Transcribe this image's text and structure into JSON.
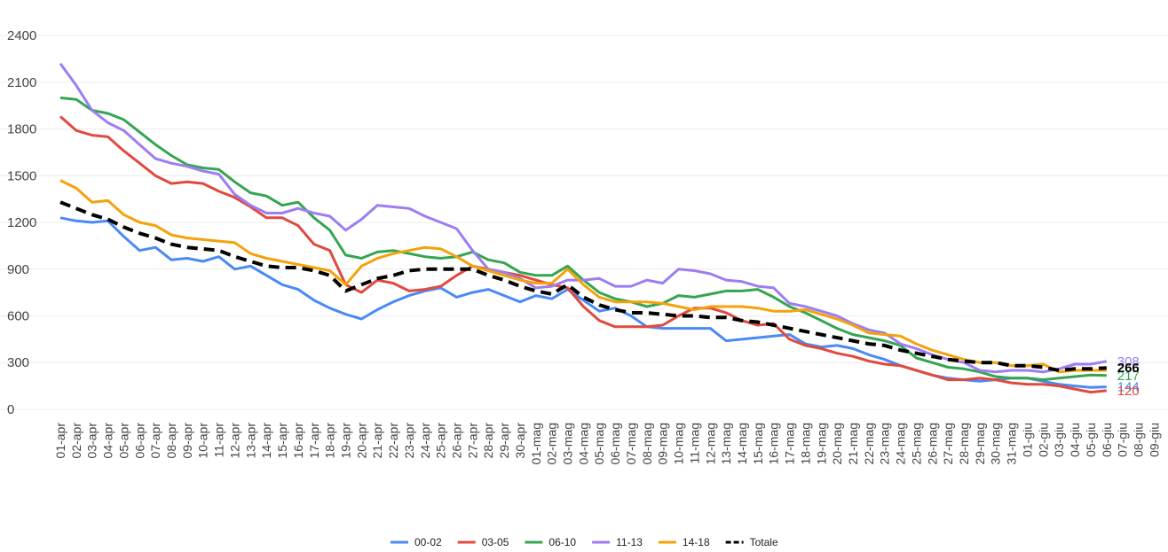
{
  "chart_data": {
    "type": "line",
    "categories": [
      "01-apr",
      "02-apr",
      "03-apr",
      "04-apr",
      "05-apr",
      "06-apr",
      "07-apr",
      "08-apr",
      "09-apr",
      "10-apr",
      "11-apr",
      "12-apr",
      "13-apr",
      "14-apr",
      "15-apr",
      "16-apr",
      "17-apr",
      "18-apr",
      "19-apr",
      "20-apr",
      "21-apr",
      "22-apr",
      "23-apr",
      "24-apr",
      "25-apr",
      "26-apr",
      "27-apr",
      "28-apr",
      "29-apr",
      "30-apr",
      "01-mag",
      "02-mag",
      "03-mag",
      "04-mag",
      "05-mag",
      "06-mag",
      "07-mag",
      "08-mag",
      "09-mag",
      "10-mag",
      "11-mag",
      "12-mag",
      "13-mag",
      "14-mag",
      "15-mag",
      "16-mag",
      "17-mag",
      "18-mag",
      "19-mag",
      "20-mag",
      "21-mag",
      "22-mag",
      "23-mag",
      "24-mag",
      "25-mag",
      "26-mag",
      "27-mag",
      "28-mag",
      "29-mag",
      "30-mag",
      "31-mag",
      "01-giu",
      "02-giu",
      "03-giu",
      "04-giu",
      "05-giu",
      "06-giu",
      "07-giu",
      "08-giu",
      "09-giu"
    ],
    "series": [
      {
        "name": "00-02",
        "color": "#4a8af4",
        "label_last": true,
        "values": [
          1230,
          1210,
          1200,
          1210,
          1110,
          1020,
          1040,
          960,
          970,
          950,
          980,
          900,
          920,
          860,
          800,
          770,
          700,
          650,
          610,
          580,
          640,
          690,
          730,
          760,
          780,
          720,
          750,
          770,
          730,
          690,
          730,
          710,
          770,
          700,
          630,
          650,
          600,
          530,
          520,
          520,
          520,
          520,
          440,
          450,
          460,
          470,
          480,
          420,
          400,
          410,
          390,
          350,
          320,
          280,
          250,
          220,
          200,
          190,
          180,
          190,
          200,
          200,
          180,
          160,
          150,
          140,
          144,
          null,
          null,
          null
        ]
      },
      {
        "name": "03-05",
        "color": "#e04a3f",
        "label_last": true,
        "values": [
          1880,
          1790,
          1760,
          1750,
          1660,
          1580,
          1500,
          1450,
          1460,
          1450,
          1400,
          1360,
          1300,
          1230,
          1230,
          1180,
          1060,
          1020,
          800,
          750,
          830,
          810,
          760,
          770,
          790,
          860,
          920,
          900,
          880,
          860,
          830,
          800,
          780,
          660,
          570,
          530,
          530,
          530,
          540,
          600,
          650,
          650,
          620,
          570,
          540,
          550,
          450,
          410,
          390,
          360,
          340,
          310,
          290,
          280,
          250,
          220,
          190,
          190,
          200,
          190,
          170,
          160,
          160,
          150,
          130,
          110,
          120,
          null,
          null,
          null
        ]
      },
      {
        "name": "06-10",
        "color": "#35a551",
        "label_last": true,
        "values": [
          2000,
          1990,
          1920,
          1900,
          1860,
          1780,
          1700,
          1630,
          1570,
          1550,
          1540,
          1460,
          1390,
          1370,
          1310,
          1330,
          1230,
          1150,
          990,
          970,
          1010,
          1020,
          1000,
          980,
          970,
          980,
          1010,
          960,
          940,
          880,
          860,
          860,
          920,
          830,
          750,
          710,
          690,
          660,
          680,
          730,
          720,
          740,
          760,
          760,
          770,
          720,
          660,
          620,
          570,
          520,
          480,
          460,
          440,
          410,
          330,
          300,
          270,
          260,
          240,
          210,
          200,
          200,
          190,
          200,
          210,
          220,
          217,
          null,
          null,
          null
        ]
      },
      {
        "name": "11-13",
        "color": "#9d7df2",
        "label_last": true,
        "values": [
          2220,
          2080,
          1920,
          1840,
          1790,
          1700,
          1610,
          1580,
          1560,
          1530,
          1510,
          1380,
          1310,
          1260,
          1260,
          1290,
          1260,
          1240,
          1150,
          1220,
          1310,
          1300,
          1290,
          1240,
          1200,
          1160,
          1020,
          900,
          880,
          840,
          780,
          790,
          830,
          830,
          840,
          790,
          790,
          830,
          810,
          900,
          890,
          870,
          830,
          820,
          790,
          780,
          680,
          660,
          630,
          600,
          550,
          510,
          490,
          420,
          390,
          350,
          320,
          300,
          250,
          240,
          250,
          250,
          240,
          260,
          290,
          290,
          308,
          null,
          null,
          null
        ]
      },
      {
        "name": "14-18",
        "color": "#f5a20a",
        "label_last": false,
        "values": [
          1470,
          1420,
          1330,
          1340,
          1250,
          1200,
          1180,
          1120,
          1100,
          1090,
          1080,
          1070,
          1000,
          970,
          950,
          930,
          910,
          890,
          800,
          920,
          970,
          1000,
          1020,
          1040,
          1030,
          980,
          920,
          890,
          860,
          830,
          810,
          810,
          900,
          800,
          720,
          690,
          690,
          690,
          680,
          660,
          640,
          660,
          660,
          660,
          650,
          630,
          630,
          640,
          610,
          580,
          540,
          490,
          480,
          470,
          420,
          380,
          350,
          320,
          300,
          300,
          280,
          280,
          290,
          240,
          250,
          250,
          250,
          null,
          null,
          null
        ]
      },
      {
        "name": "Totale",
        "color": "#000000",
        "dashed": true,
        "label_last": true,
        "values": [
          1330,
          1290,
          1250,
          1220,
          1170,
          1130,
          1100,
          1060,
          1040,
          1030,
          1020,
          980,
          950,
          920,
          910,
          910,
          890,
          860,
          760,
          800,
          840,
          860,
          890,
          900,
          900,
          900,
          900,
          860,
          830,
          790,
          760,
          740,
          800,
          720,
          670,
          640,
          620,
          620,
          610,
          600,
          600,
          590,
          590,
          570,
          560,
          540,
          520,
          500,
          480,
          460,
          440,
          420,
          410,
          380,
          360,
          340,
          320,
          310,
          300,
          300,
          280,
          280,
          270,
          250,
          260,
          260,
          266,
          null,
          null,
          null
        ]
      }
    ],
    "ylim": [
      -60,
      2560
    ],
    "yticks": [
      0,
      300,
      600,
      900,
      1200,
      1500,
      1800,
      2100,
      2400
    ],
    "grid": true,
    "legend": "bottom"
  }
}
